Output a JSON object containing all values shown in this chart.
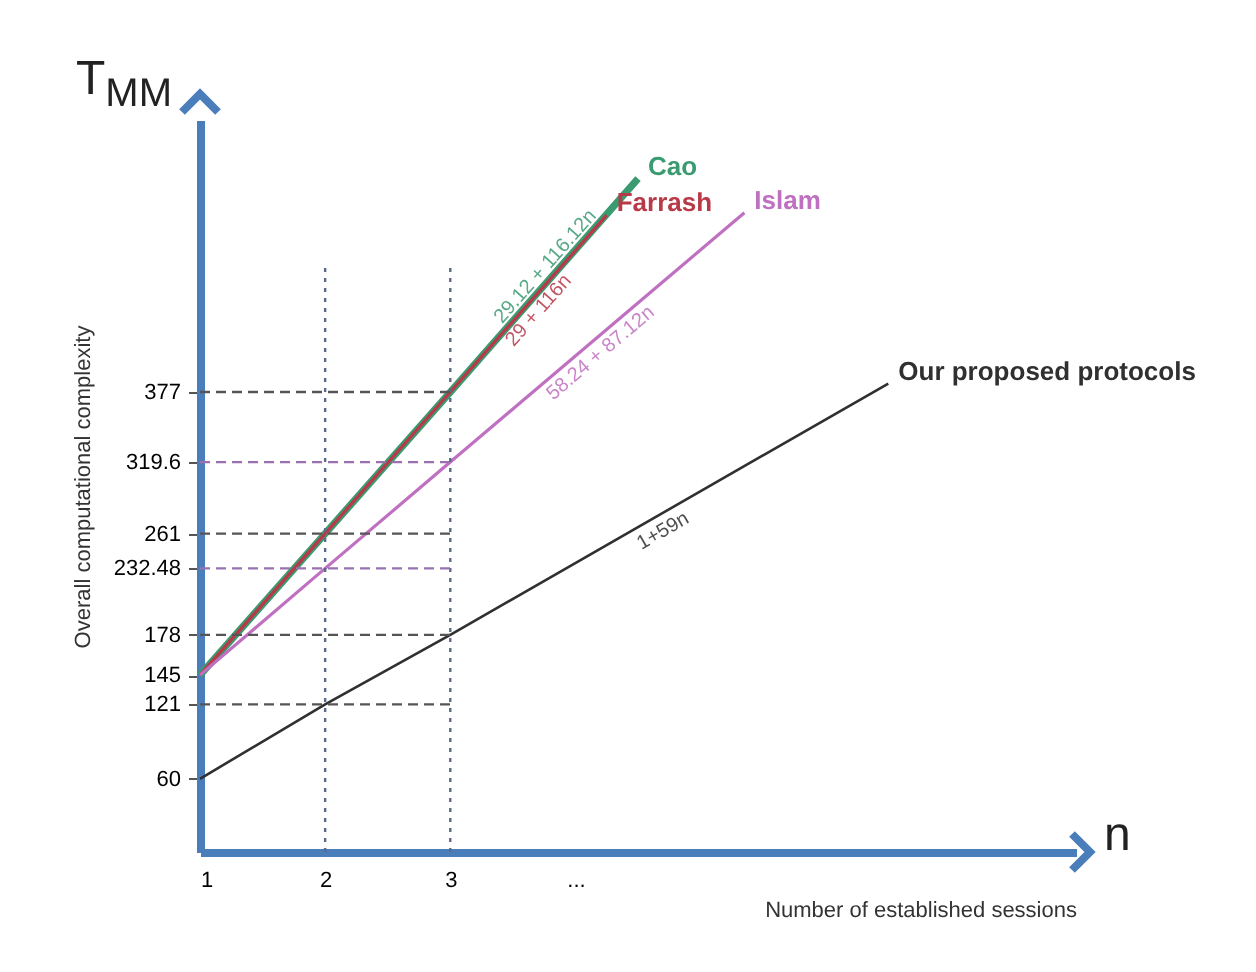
{
  "chart_data": {
    "type": "line",
    "xlabel": "Number  of established sessions",
    "ylabel": "Overall computational complexity",
    "xlim": [
      1,
      8
    ],
    "xticks": [
      1,
      2,
      3,
      {
        "value": 4,
        "label": "..."
      }
    ],
    "ylim": [
      0,
      600
    ],
    "yticks": [
      60,
      121,
      145,
      178,
      232.48,
      261,
      319.6,
      377
    ],
    "series": [
      {
        "name": "Cao",
        "color": "#3a9a70",
        "x": [
          1,
          2,
          3,
          4.5
        ],
        "values": [
          145,
          261,
          377,
          552
        ]
      },
      {
        "name": "Farrash",
        "color": "#b83a48",
        "x": [
          1,
          2,
          3,
          4.25
        ],
        "values": [
          145,
          261,
          377,
          522
        ]
      },
      {
        "name": "Islam",
        "color": "#c070c0",
        "x": [
          1,
          2,
          3,
          5.35
        ],
        "values": [
          145,
          232.48,
          319.6,
          524
        ]
      },
      {
        "name": "Our proposed protocols",
        "color": "#303030",
        "x": [
          1,
          2,
          3,
          6.5
        ],
        "values": [
          60,
          121,
          178,
          384
        ]
      }
    ],
    "ref_lines": [
      {
        "axis": "x",
        "value": 2,
        "line_style": "dotted",
        "color": "#5a6a8a"
      },
      {
        "axis": "x",
        "value": 3,
        "line_style": "dotted",
        "color": "#5a6a8a"
      },
      {
        "axis": "y",
        "value": 377,
        "line_style": "dashed",
        "color": "#555555"
      },
      {
        "axis": "y",
        "value": 319.6,
        "line_style": "dashed",
        "color": "#9a70b0"
      },
      {
        "axis": "y",
        "value": 261,
        "line_style": "dashed",
        "color": "#555555"
      },
      {
        "axis": "y",
        "value": 232.48,
        "line_style": "dashed",
        "color": "#9a70b0"
      },
      {
        "axis": "y",
        "value": 178,
        "line_style": "dashed",
        "color": "#555555"
      },
      {
        "axis": "y",
        "value": 121,
        "line_style": "dashed",
        "color": "#555555"
      }
    ],
    "annotations": [
      "T$_{MM}$",
      "n",
      "29.12 + 116.12n",
      "29 + 116n",
      "58.24 + 87.12n",
      "1+59n"
    ],
    "grid": false,
    "legend": false,
    "marker": "none",
    "line_style": "solid"
  }
}
